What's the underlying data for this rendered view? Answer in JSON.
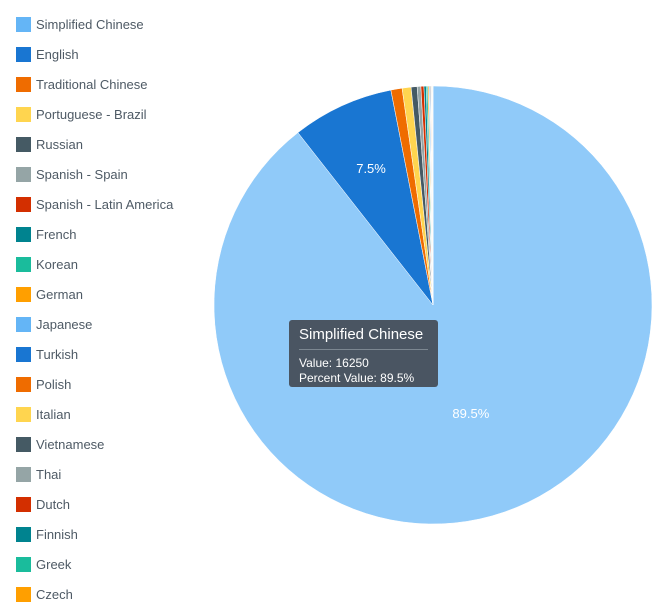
{
  "chart_data": {
    "type": "pie",
    "slices": [
      {
        "label": "Simplified Chinese",
        "value": 16250,
        "percent": 89.5,
        "color": "#90caf9",
        "swatch": "#64b5f6"
      },
      {
        "label": "English",
        "value": 1362,
        "percent": 7.5,
        "color": "#1976d2",
        "swatch": "#1976d2"
      },
      {
        "label": "Traditional Chinese",
        "value": 150,
        "percent": 0.83,
        "color": "#ef6c00",
        "swatch": "#ef6c00"
      },
      {
        "label": "Portuguese - Brazil",
        "value": 120,
        "percent": 0.66,
        "color": "#ffd54f",
        "swatch": "#ffd54f"
      },
      {
        "label": "Russian",
        "value": 80,
        "percent": 0.44,
        "color": "#455a64",
        "swatch": "#455a64"
      },
      {
        "label": "Spanish - Spain",
        "value": 50,
        "percent": 0.28,
        "color": "#95a5a6",
        "swatch": "#95a5a6"
      },
      {
        "label": "Spanish - Latin America",
        "value": 40,
        "percent": 0.22,
        "color": "#d32f00",
        "swatch": "#d32f00"
      },
      {
        "label": "French",
        "value": 30,
        "percent": 0.17,
        "color": "#00838f",
        "swatch": "#00838f"
      },
      {
        "label": "Korean",
        "value": 20,
        "percent": 0.11,
        "color": "#1abc9c",
        "swatch": "#1abc9c"
      },
      {
        "label": "German",
        "value": 15,
        "percent": 0.08,
        "color": "#ff9f00",
        "swatch": "#ff9f00"
      },
      {
        "label": "Japanese",
        "value": 12,
        "percent": 0.07,
        "color": "#64b5f6",
        "swatch": "#64b5f6"
      },
      {
        "label": "Turkish",
        "value": 10,
        "percent": 0.06,
        "color": "#1976d2",
        "swatch": "#1976d2"
      },
      {
        "label": "Polish",
        "value": 8,
        "percent": 0.04,
        "color": "#ef6c00",
        "swatch": "#ef6c00"
      },
      {
        "label": "Italian",
        "value": 6,
        "percent": 0.03,
        "color": "#ffd54f",
        "swatch": "#ffd54f"
      },
      {
        "label": "Vietnamese",
        "value": 5,
        "percent": 0.03,
        "color": "#455a64",
        "swatch": "#455a64"
      },
      {
        "label": "Thai",
        "value": 4,
        "percent": 0.02,
        "color": "#95a5a6",
        "swatch": "#95a5a6"
      },
      {
        "label": "Dutch",
        "value": 3,
        "percent": 0.02,
        "color": "#d32f00",
        "swatch": "#d32f00"
      },
      {
        "label": "Finnish",
        "value": 3,
        "percent": 0.02,
        "color": "#00838f",
        "swatch": "#00838f"
      },
      {
        "label": "Greek",
        "value": 2,
        "percent": 0.01,
        "color": "#1abc9c",
        "swatch": "#1abc9c"
      },
      {
        "label": "Czech",
        "value": 2,
        "percent": 0.01,
        "color": "#ff9f00",
        "swatch": "#ff9f00"
      }
    ],
    "data_labels": [
      {
        "text": "89.5%",
        "slice": "Simplified Chinese"
      },
      {
        "text": "7.5%",
        "slice": "English"
      }
    ],
    "legend_position": "left"
  },
  "tooltip": {
    "title": "Simplified Chinese",
    "value_line": "Value: 16250",
    "percent_line": "Percent Value: 89.5%"
  }
}
